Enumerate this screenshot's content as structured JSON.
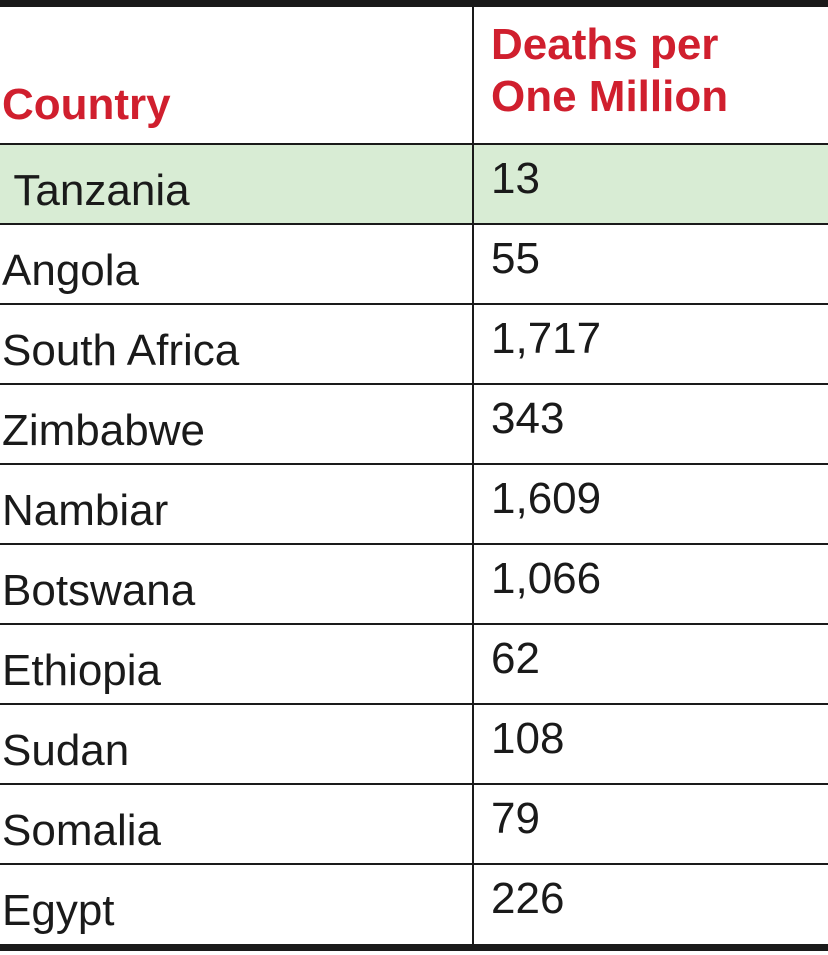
{
  "chart_data": {
    "type": "table",
    "columns": [
      "Country",
      "Deaths per One Million"
    ],
    "header_color": "#d01f2e",
    "highlight_color": "#d8ecd4",
    "highlighted_row": "Tanzania",
    "rows": [
      {
        "country": " Tanzania",
        "value": "13"
      },
      {
        "country": "Angola",
        "value": "55"
      },
      {
        "country": "South Africa",
        "value": "1,717"
      },
      {
        "country": "Zimbabwe",
        "value": "343"
      },
      {
        "country": "Nambiar",
        "value": "1,609"
      },
      {
        "country": "Botswana",
        "value": "1,066"
      },
      {
        "country": "Ethiopia",
        "value": "62"
      },
      {
        "country": "Sudan",
        "value": "108"
      },
      {
        "country": "Somalia",
        "value": "79"
      },
      {
        "country": "Egypt",
        "value": "226"
      }
    ]
  },
  "header": {
    "country_label": "Country",
    "value_label_line1": "Deaths per",
    "value_label_line2": "One Million"
  }
}
